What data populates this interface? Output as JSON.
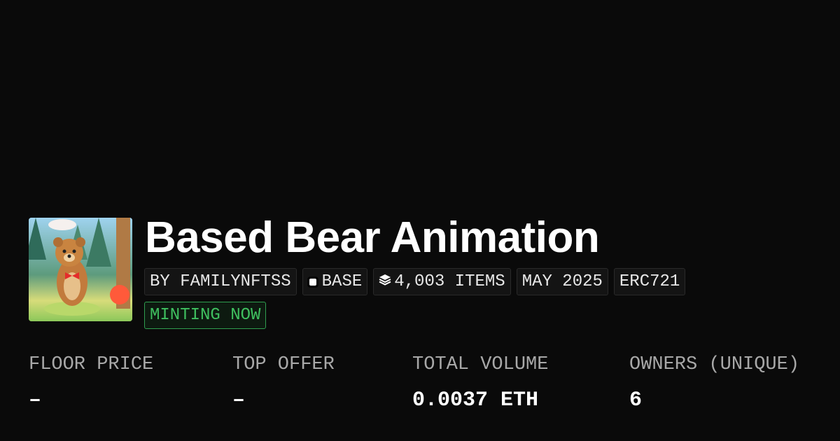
{
  "collection": {
    "title": "Based Bear Animation",
    "tags": {
      "creator": "BY FAMILYNFTSS",
      "chain": "BASE",
      "items": "4,003 ITEMS",
      "date": "MAY 2025",
      "standard": "ERC721"
    },
    "status": "MINTING NOW",
    "status_color": "#3fbf5f"
  },
  "stats": [
    {
      "label": "FLOOR PRICE",
      "value": "–"
    },
    {
      "label": "TOP OFFER",
      "value": "–"
    },
    {
      "label": "TOTAL VOLUME",
      "value": "0.0037 ETH"
    },
    {
      "label": "OWNERS (UNIQUE)",
      "value": "6"
    }
  ],
  "icons": {
    "chain": "base-chain-icon",
    "items": "layers-icon"
  }
}
